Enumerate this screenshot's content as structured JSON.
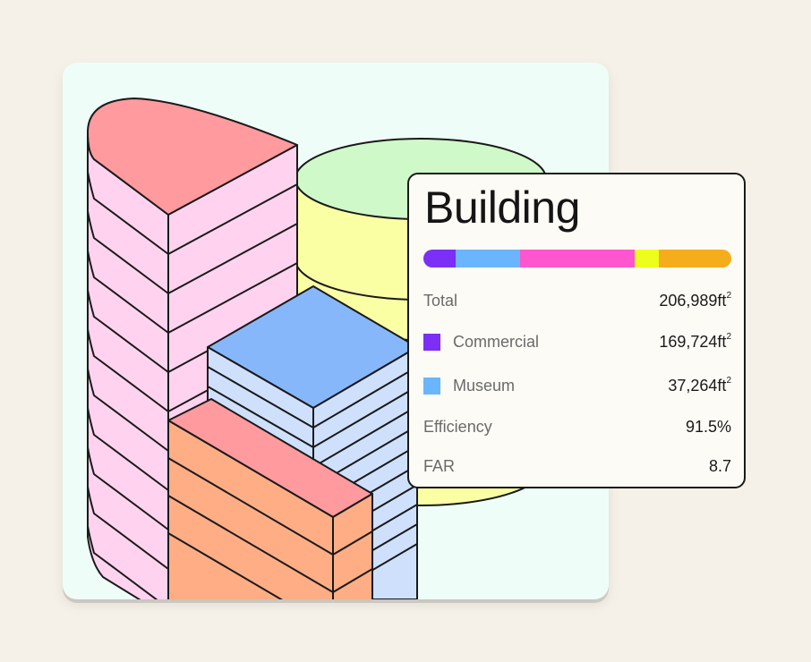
{
  "panel": {
    "title": "Building",
    "share_bar": [
      {
        "name": "purple",
        "color": "#7b2ff7",
        "fraction": 0.105
      },
      {
        "name": "blue",
        "color": "#6ab5fb",
        "fraction": 0.21
      },
      {
        "name": "pink",
        "color": "#ff55cf",
        "fraction": 0.37
      },
      {
        "name": "yellow",
        "color": "#eefe1c",
        "fraction": 0.08
      },
      {
        "name": "orange",
        "color": "#f6ad1b",
        "fraction": 0.235
      }
    ],
    "rows": [
      {
        "label": "Total",
        "value": "206,989ft",
        "unit_sup": "2",
        "swatch": null
      },
      {
        "label": "Commercial",
        "value": "169,724ft",
        "unit_sup": "2",
        "swatch": "#7b2ff7"
      },
      {
        "label": "Museum",
        "value": "37,264ft",
        "unit_sup": "2",
        "swatch": "#6ab5fb"
      },
      {
        "label": "Efficiency",
        "value": "91.5%",
        "unit_sup": "",
        "swatch": null
      },
      {
        "label": "FAR",
        "value": "8.7",
        "unit_sup": "",
        "swatch": null
      }
    ]
  },
  "scene": {
    "colors": {
      "background": "#effdf8",
      "tower_top": "#ff9a9f",
      "tower_side": "#ffd3f0",
      "cylinder_top": "#cff9c9",
      "cylinder_side": "#fbffa4",
      "blue_top": "#87b7fb",
      "blue_side": "#cfe0fd",
      "orange_top": "#ff9a9f",
      "orange_side": "#ffad85",
      "outline": "#1a1a1a"
    }
  }
}
